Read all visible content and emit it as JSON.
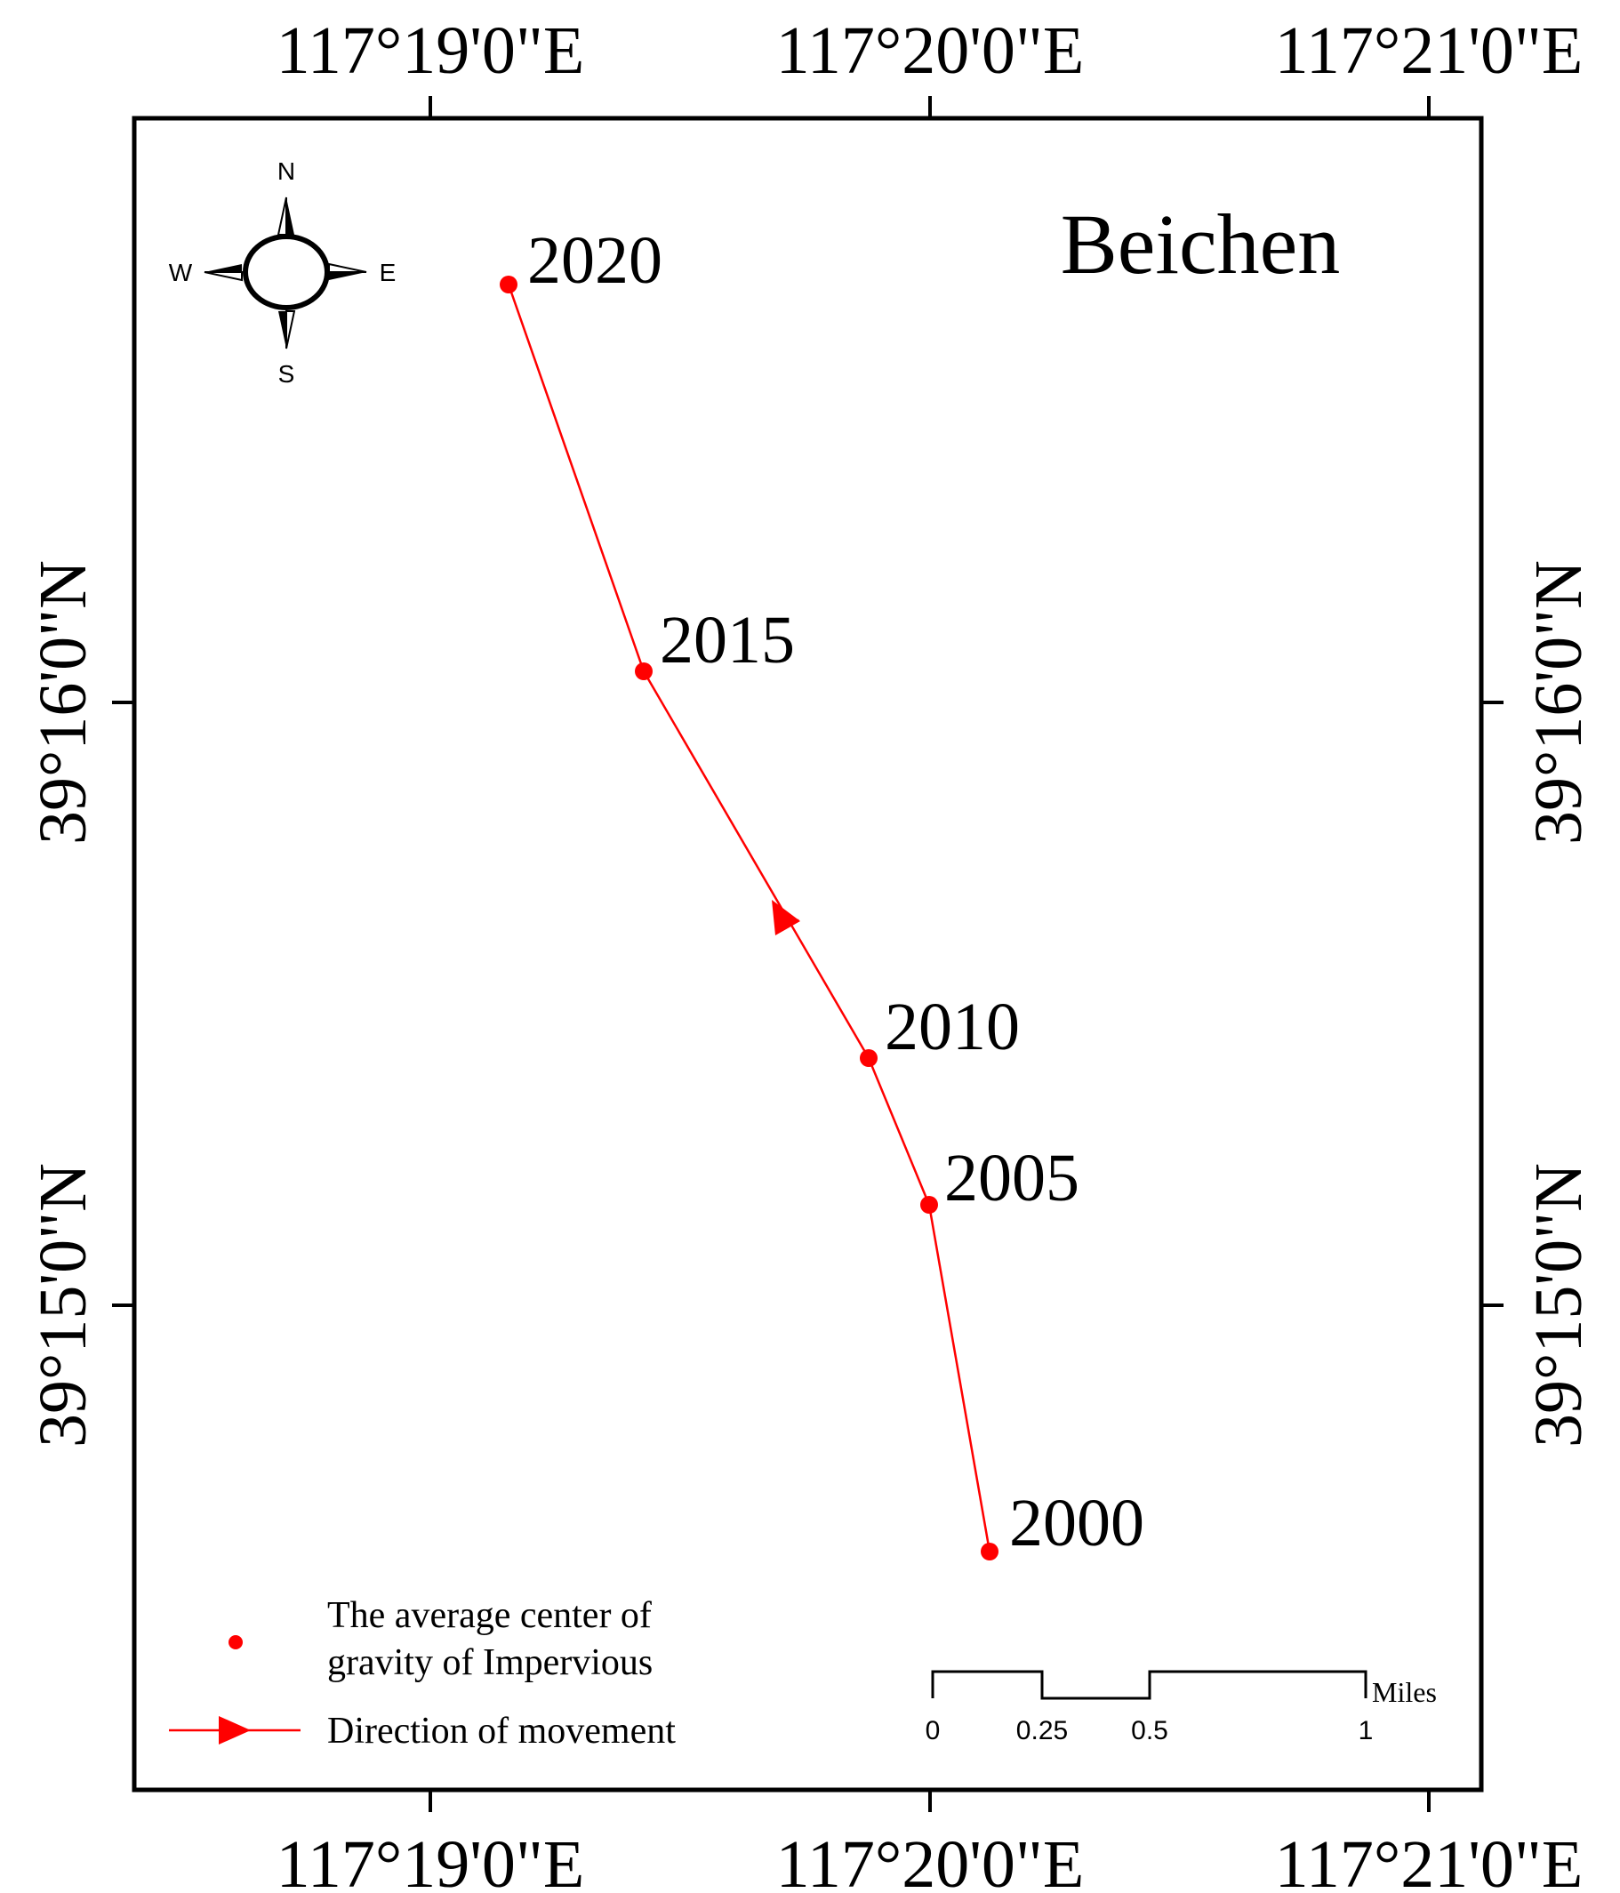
{
  "title": "Beichen",
  "colors": {
    "path": "#ff0000",
    "frame": "#000000",
    "text": "#000000"
  },
  "lon_labels": [
    "117°19'0\"E",
    "117°20'0\"E",
    "117°21'0\"E"
  ],
  "lat_labels": [
    "39°16'0\"N",
    "39°15'0\"N"
  ],
  "points": [
    {
      "year": "2000"
    },
    {
      "year": "2005"
    },
    {
      "year": "2010"
    },
    {
      "year": "2015"
    },
    {
      "year": "2020"
    }
  ],
  "legend": {
    "center_line1": "The average center of",
    "center_line2": "gravity of Impervious",
    "direction": "Direction of movement"
  },
  "scale_bar": {
    "unit": "Miles",
    "ticks": [
      "0",
      "0.25",
      "0.5",
      "1"
    ]
  },
  "north_arrow": {
    "icon": "compass-rose-icon",
    "n": "N",
    "s": "S",
    "e": "E",
    "w": "W"
  }
}
